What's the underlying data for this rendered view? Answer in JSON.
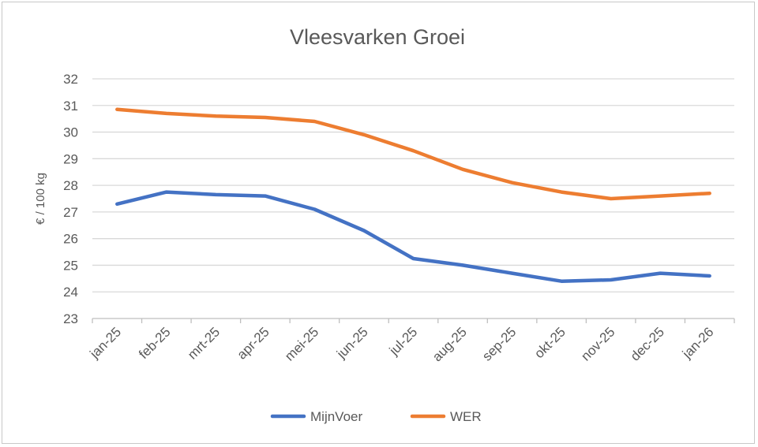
{
  "chart_data": {
    "type": "line",
    "title": "Vleesvarken Groei",
    "xlabel": "",
    "ylabel": "€ / 100 kg",
    "ylim": [
      23,
      32
    ],
    "y_ticks": [
      23,
      24,
      25,
      26,
      27,
      28,
      29,
      30,
      31,
      32
    ],
    "grid": true,
    "legend_position": "bottom",
    "categories": [
      "jan-25",
      "feb-25",
      "mrt-25",
      "apr-25",
      "mei-25",
      "jun-25",
      "jul-25",
      "aug-25",
      "sep-25",
      "okt-25",
      "nov-25",
      "dec-25",
      "jan-26"
    ],
    "series": [
      {
        "name": "MijnVoer",
        "color": "#4472c4",
        "values": [
          27.3,
          27.75,
          27.65,
          27.6,
          27.1,
          26.3,
          25.25,
          25.0,
          24.7,
          24.4,
          24.45,
          24.7,
          24.6
        ]
      },
      {
        "name": "WER",
        "color": "#ed7d31",
        "values": [
          30.85,
          30.7,
          30.6,
          30.55,
          30.4,
          29.9,
          29.3,
          28.6,
          28.1,
          27.75,
          27.5,
          27.6,
          27.7
        ]
      }
    ]
  }
}
